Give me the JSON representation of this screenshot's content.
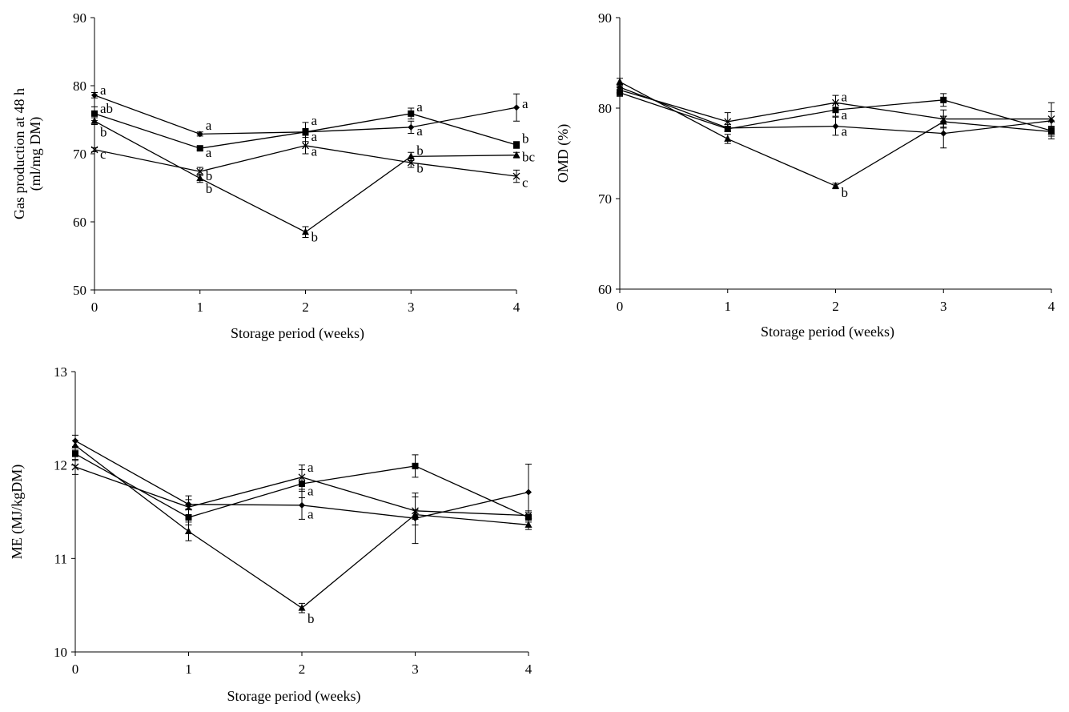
{
  "chart_data": [
    {
      "id": "gas",
      "type": "line",
      "title": "",
      "xlabel": "Storage period (weeks)",
      "ylabel": [
        "Gas production at 48 h",
        "(ml/mg DM)"
      ],
      "x": [
        0,
        1,
        2,
        3,
        4
      ],
      "xlim": [
        0,
        4
      ],
      "ylim": [
        50,
        90
      ],
      "yticks": [
        50,
        60,
        70,
        80,
        90
      ],
      "xticks": [
        0,
        1,
        2,
        3,
        4
      ],
      "grid": false,
      "series": [
        {
          "name": "diamond",
          "marker": "diamond",
          "values": [
            78.6,
            72.9,
            73.2,
            73.9,
            76.8
          ],
          "errors": [
            0.4,
            0.3,
            0.5,
            0.9,
            2.0
          ]
        },
        {
          "name": "square",
          "marker": "square",
          "values": [
            75.9,
            70.8,
            73.2,
            75.9,
            71.3
          ],
          "errors": [
            1.0,
            0.3,
            1.4,
            0.8,
            0.5
          ]
        },
        {
          "name": "triangle",
          "marker": "triangle",
          "values": [
            74.8,
            66.4,
            58.5,
            69.6,
            69.8
          ],
          "errors": [
            0.5,
            0.6,
            0.8,
            0.6,
            0.4
          ]
        },
        {
          "name": "cross",
          "marker": "cross",
          "values": [
            70.6,
            67.4,
            71.2,
            68.7,
            66.7
          ],
          "errors": [
            0.3,
            0.6,
            1.2,
            0.7,
            0.9
          ]
        }
      ],
      "annotations": [
        {
          "x": 0,
          "y": 79.3,
          "text": "a"
        },
        {
          "x": 0,
          "y": 76.6,
          "text": "ab"
        },
        {
          "x": 0,
          "y": 73.1,
          "text": "b"
        },
        {
          "x": 0,
          "y": 69.9,
          "text": "c"
        },
        {
          "x": 1,
          "y": 74.1,
          "text": "a"
        },
        {
          "x": 1,
          "y": 70.1,
          "text": "a"
        },
        {
          "x": 1,
          "y": 66.7,
          "text": "b"
        },
        {
          "x": 1,
          "y": 64.8,
          "text": "b"
        },
        {
          "x": 2,
          "y": 74.8,
          "text": "a"
        },
        {
          "x": 2,
          "y": 72.5,
          "text": "a"
        },
        {
          "x": 2,
          "y": 70.3,
          "text": "a"
        },
        {
          "x": 2,
          "y": 57.7,
          "text": "b"
        },
        {
          "x": 3,
          "y": 76.8,
          "text": "a"
        },
        {
          "x": 3,
          "y": 73.3,
          "text": "a"
        },
        {
          "x": 3,
          "y": 70.4,
          "text": "b"
        },
        {
          "x": 3,
          "y": 67.8,
          "text": "b"
        },
        {
          "x": 4,
          "y": 77.3,
          "text": "a"
        },
        {
          "x": 4,
          "y": 72.2,
          "text": "b"
        },
        {
          "x": 4,
          "y": 69.5,
          "text": "bc"
        },
        {
          "x": 4,
          "y": 65.7,
          "text": "c"
        }
      ]
    },
    {
      "id": "omd",
      "type": "line",
      "title": "",
      "xlabel": "Storage period (weeks)",
      "ylabel": [
        "OMD (%)"
      ],
      "x": [
        0,
        1,
        2,
        3,
        4
      ],
      "xlim": [
        0,
        4
      ],
      "ylim": [
        60,
        90
      ],
      "yticks": [
        60,
        70,
        80,
        90
      ],
      "xticks": [
        0,
        1,
        2,
        3,
        4
      ],
      "grid": false,
      "series": [
        {
          "name": "diamond",
          "marker": "diamond",
          "values": [
            82.3,
            77.8,
            78.0,
            77.2,
            78.6
          ],
          "errors": [
            0.3,
            0.4,
            1.0,
            1.6,
            2.0
          ]
        },
        {
          "name": "square",
          "marker": "square",
          "values": [
            81.7,
            77.7,
            79.8,
            80.9,
            77.5
          ],
          "errors": [
            0.4,
            0.3,
            0.7,
            0.7,
            0.4
          ]
        },
        {
          "name": "triangle",
          "marker": "triangle",
          "values": [
            82.9,
            76.6,
            71.4,
            78.5,
            77.4
          ],
          "errors": [
            0.4,
            0.5,
            0.3,
            0.6,
            0.5
          ]
        },
        {
          "name": "cross",
          "marker": "cross",
          "values": [
            82.0,
            78.5,
            80.6,
            78.8,
            78.8
          ],
          "errors": [
            0.3,
            1.0,
            0.8,
            1.0,
            0.8
          ]
        }
      ],
      "annotations": [
        {
          "x": 2,
          "y": 81.2,
          "text": "a"
        },
        {
          "x": 2,
          "y": 79.2,
          "text": "a"
        },
        {
          "x": 2,
          "y": 77.4,
          "text": "a"
        },
        {
          "x": 2,
          "y": 70.6,
          "text": "b"
        }
      ]
    },
    {
      "id": "me",
      "type": "line",
      "title": "",
      "xlabel": "Storage period (weeks)",
      "ylabel": [
        "ME (MJ/kgDM)"
      ],
      "x": [
        0,
        1,
        2,
        3,
        4
      ],
      "xlim": [
        0,
        4
      ],
      "ylim": [
        10,
        13
      ],
      "yticks": [
        10,
        11,
        12,
        13
      ],
      "xticks": [
        0,
        1,
        2,
        3,
        4
      ],
      "grid": false,
      "series": [
        {
          "name": "diamond",
          "marker": "diamond",
          "values": [
            12.26,
            11.58,
            11.57,
            11.43,
            11.71
          ],
          "errors": [
            0.06,
            0.05,
            0.15,
            0.27,
            0.3
          ]
        },
        {
          "name": "square",
          "marker": "square",
          "values": [
            12.12,
            11.44,
            11.8,
            11.99,
            11.44
          ],
          "errors": [
            0.07,
            0.08,
            0.15,
            0.12,
            0.05
          ]
        },
        {
          "name": "triangle",
          "marker": "triangle",
          "values": [
            12.21,
            11.29,
            10.47,
            11.47,
            11.36
          ],
          "errors": [
            0.05,
            0.1,
            0.05,
            0.05,
            0.05
          ]
        },
        {
          "name": "cross",
          "marker": "cross",
          "values": [
            11.98,
            11.55,
            11.87,
            11.51,
            11.46
          ],
          "errors": [
            0.08,
            0.12,
            0.13,
            0.15,
            0.05
          ]
        }
      ],
      "annotations": [
        {
          "x": 2,
          "y": 11.97,
          "text": "a"
        },
        {
          "x": 2,
          "y": 11.72,
          "text": "a"
        },
        {
          "x": 2,
          "y": 11.47,
          "text": "a"
        },
        {
          "x": 2,
          "y": 10.35,
          "text": "b"
        }
      ]
    }
  ]
}
